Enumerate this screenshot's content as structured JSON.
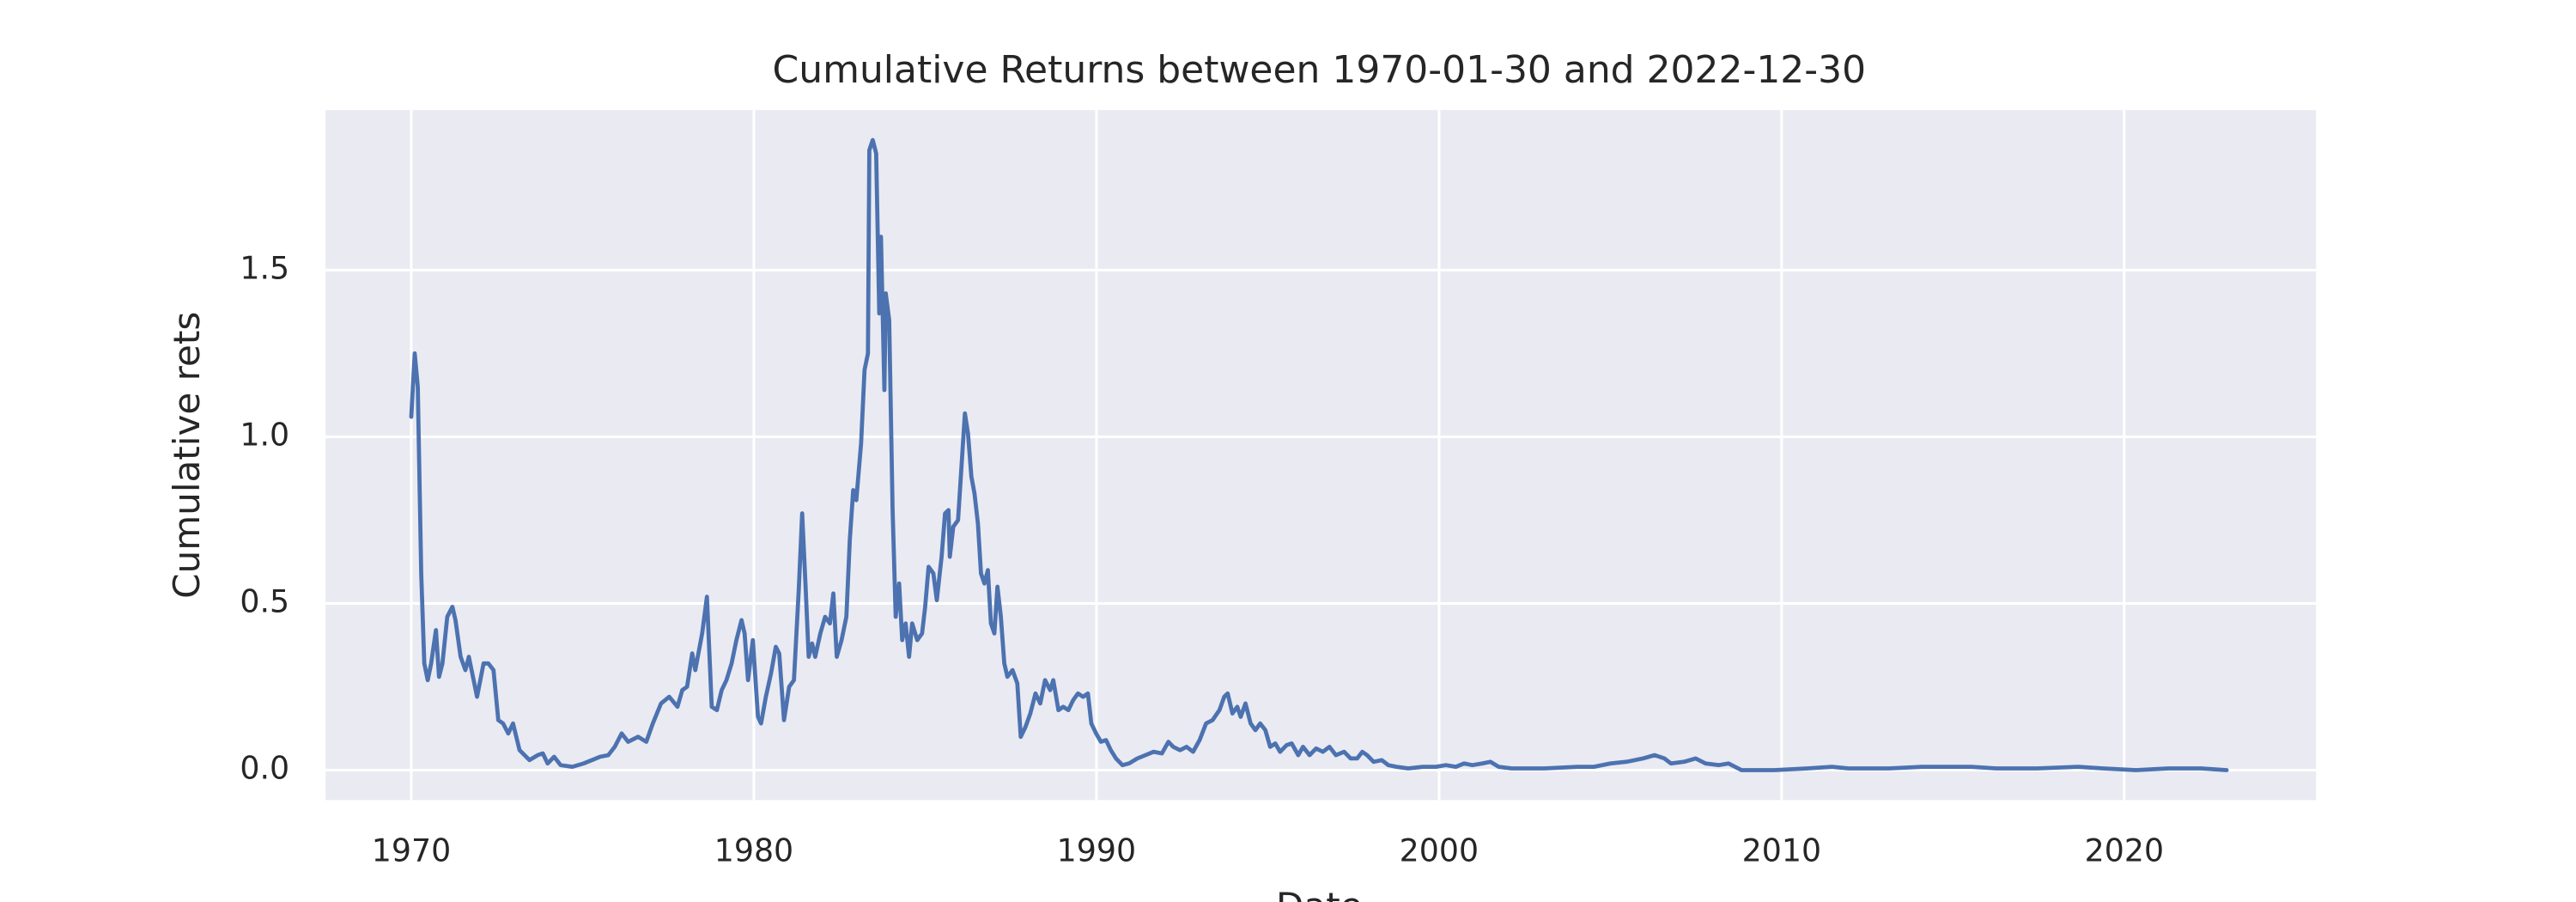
{
  "chart_data": {
    "type": "line",
    "title": "Cumulative Returns between 1970-01-30 and 2022-12-30",
    "xlabel": "Date",
    "ylabel": "Cumulative rets",
    "color": "#4c72b0",
    "grid": true,
    "xlim": [
      1967.5,
      2025.6
    ],
    "ylim": [
      -0.09,
      1.98
    ],
    "xticks": [
      1970,
      1980,
      1990,
      2000,
      2010,
      2020
    ],
    "yticks": [
      {
        "value": 0,
        "label": "0.0"
      },
      {
        "value": 0.5,
        "label": "0.5"
      },
      {
        "value": 1,
        "label": "1.0"
      },
      {
        "value": 1.5,
        "label": "1.5"
      }
    ],
    "x": [
      1970.0,
      1970.1,
      1970.19,
      1970.29,
      1970.38,
      1970.48,
      1970.58,
      1970.72,
      1970.81,
      1970.91,
      1971.05,
      1971.2,
      1971.29,
      1971.44,
      1971.58,
      1971.68,
      1971.92,
      1972.11,
      1972.25,
      1972.4,
      1972.54,
      1972.68,
      1972.83,
      1972.97,
      1973.16,
      1973.45,
      1973.69,
      1973.84,
      1973.98,
      1974.17,
      1974.36,
      1974.7,
      1975.03,
      1975.27,
      1975.51,
      1975.75,
      1975.94,
      1976.14,
      1976.33,
      1976.62,
      1976.86,
      1977.05,
      1977.29,
      1977.53,
      1977.77,
      1977.91,
      1978.05,
      1978.2,
      1978.29,
      1978.49,
      1978.63,
      1978.77,
      1978.92,
      1979.06,
      1979.2,
      1979.35,
      1979.49,
      1979.64,
      1979.73,
      1979.83,
      1979.97,
      1980.12,
      1980.21,
      1980.35,
      1980.5,
      1980.64,
      1980.74,
      1980.88,
      1981.03,
      1981.17,
      1981.31,
      1981.41,
      1981.51,
      1981.6,
      1981.7,
      1981.79,
      1981.94,
      1982.08,
      1982.22,
      1982.32,
      1982.42,
      1982.56,
      1982.7,
      1982.8,
      1982.9,
      1982.99,
      1983.13,
      1983.23,
      1983.33,
      1983.37,
      1983.47,
      1983.57,
      1983.66,
      1983.71,
      1983.81,
      1983.85,
      1983.95,
      1984.05,
      1984.14,
      1984.24,
      1984.33,
      1984.43,
      1984.53,
      1984.62,
      1984.77,
      1984.91,
      1985.0,
      1985.1,
      1985.24,
      1985.34,
      1985.48,
      1985.58,
      1985.68,
      1985.72,
      1985.82,
      1985.96,
      1986.06,
      1986.16,
      1986.25,
      1986.35,
      1986.44,
      1986.54,
      1986.63,
      1986.73,
      1986.83,
      1986.92,
      1987.02,
      1987.11,
      1987.21,
      1987.31,
      1987.4,
      1987.55,
      1987.69,
      1987.79,
      1987.93,
      1988.07,
      1988.22,
      1988.36,
      1988.5,
      1988.65,
      1988.74,
      1988.89,
      1989.03,
      1989.18,
      1989.32,
      1989.46,
      1989.61,
      1989.75,
      1989.85,
      1989.99,
      1990.13,
      1990.28,
      1990.42,
      1990.57,
      1990.76,
      1990.95,
      1991.19,
      1991.43,
      1991.67,
      1991.91,
      1992.1,
      1992.24,
      1992.44,
      1992.63,
      1992.82,
      1993.01,
      1993.2,
      1993.39,
      1993.59,
      1993.73,
      1993.83,
      1993.97,
      1994.11,
      1994.21,
      1994.35,
      1994.5,
      1994.64,
      1994.78,
      1994.93,
      1995.07,
      1995.22,
      1995.36,
      1995.55,
      1995.7,
      1995.89,
      1996.03,
      1996.22,
      1996.41,
      1996.61,
      1996.8,
      1996.99,
      1997.23,
      1997.42,
      1997.61,
      1997.76,
      1997.9,
      1998.09,
      1998.33,
      1998.52,
      1998.76,
      1999.1,
      1999.53,
      1999.91,
      2000.2,
      2000.49,
      2000.73,
      2000.97,
      2001.26,
      2001.5,
      2001.74,
      2002.12,
      2003.08,
      2004.04,
      2004.52,
      2005.0,
      2005.47,
      2005.95,
      2006.29,
      2006.58,
      2006.77,
      2007.15,
      2007.49,
      2007.78,
      2008.16,
      2008.45,
      2008.64,
      2008.83,
      2009.79,
      2010.75,
      2011.47,
      2011.95,
      2013.14,
      2014.1,
      2015.54,
      2016.26,
      2017.46,
      2018.66,
      2019.38,
      2020.34,
      2021.29,
      2022.25,
      2022.99
    ],
    "values": [
      1.06,
      1.25,
      1.15,
      0.59,
      0.32,
      0.27,
      0.32,
      0.42,
      0.28,
      0.32,
      0.46,
      0.49,
      0.45,
      0.34,
      0.3,
      0.34,
      0.22,
      0.32,
      0.32,
      0.3,
      0.15,
      0.14,
      0.11,
      0.14,
      0.06,
      0.03,
      0.045,
      0.05,
      0.02,
      0.04,
      0.015,
      0.01,
      0.02,
      0.03,
      0.04,
      0.045,
      0.07,
      0.11,
      0.085,
      0.1,
      0.085,
      0.14,
      0.2,
      0.22,
      0.19,
      0.24,
      0.25,
      0.35,
      0.3,
      0.41,
      0.52,
      0.19,
      0.18,
      0.24,
      0.27,
      0.32,
      0.39,
      0.45,
      0.41,
      0.27,
      0.39,
      0.16,
      0.14,
      0.22,
      0.29,
      0.37,
      0.35,
      0.15,
      0.25,
      0.27,
      0.54,
      0.77,
      0.55,
      0.34,
      0.38,
      0.34,
      0.41,
      0.46,
      0.44,
      0.53,
      0.34,
      0.39,
      0.46,
      0.69,
      0.84,
      0.81,
      0.98,
      1.2,
      1.25,
      1.86,
      1.89,
      1.85,
      1.37,
      1.6,
      1.14,
      1.43,
      1.35,
      0.78,
      0.46,
      0.56,
      0.39,
      0.44,
      0.34,
      0.44,
      0.39,
      0.41,
      0.49,
      0.61,
      0.59,
      0.51,
      0.64,
      0.77,
      0.78,
      0.64,
      0.73,
      0.75,
      0.91,
      1.07,
      1.01,
      0.88,
      0.83,
      0.74,
      0.59,
      0.56,
      0.6,
      0.44,
      0.41,
      0.55,
      0.46,
      0.32,
      0.28,
      0.3,
      0.26,
      0.1,
      0.13,
      0.17,
      0.23,
      0.2,
      0.27,
      0.24,
      0.27,
      0.18,
      0.19,
      0.18,
      0.21,
      0.23,
      0.22,
      0.23,
      0.14,
      0.11,
      0.085,
      0.09,
      0.06,
      0.035,
      0.015,
      0.02,
      0.035,
      0.045,
      0.055,
      0.05,
      0.085,
      0.07,
      0.06,
      0.07,
      0.055,
      0.09,
      0.14,
      0.15,
      0.18,
      0.22,
      0.23,
      0.17,
      0.19,
      0.16,
      0.2,
      0.14,
      0.12,
      0.14,
      0.12,
      0.07,
      0.08,
      0.055,
      0.075,
      0.08,
      0.045,
      0.07,
      0.045,
      0.065,
      0.055,
      0.07,
      0.045,
      0.055,
      0.035,
      0.035,
      0.055,
      0.045,
      0.025,
      0.03,
      0.015,
      0.01,
      0.005,
      0.01,
      0.01,
      0.015,
      0.01,
      0.02,
      0.015,
      0.02,
      0.025,
      0.01,
      0.005,
      0.005,
      0.01,
      0.01,
      0.02,
      0.025,
      0.035,
      0.045,
      0.035,
      0.02,
      0.025,
      0.035,
      0.02,
      0.015,
      0.02,
      0.01,
      0.0,
      0.0,
      0.005,
      0.01,
      0.005,
      0.005,
      0.01,
      0.01,
      0.005,
      0.005,
      0.01,
      0.005,
      0.0,
      0.005,
      0.005,
      0.0
    ]
  }
}
